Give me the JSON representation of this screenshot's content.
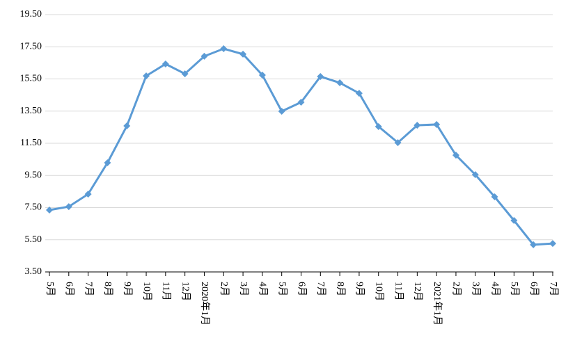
{
  "chart_data": {
    "type": "line",
    "categories": [
      "5月",
      "6月",
      "7月",
      "8月",
      "9月",
      "10月",
      "11月",
      "12月",
      "2020年1月",
      "2月",
      "3月",
      "4月",
      "5月",
      "6月",
      "7月",
      "8月",
      "9月",
      "10月",
      "11月",
      "12月",
      "2021年1月",
      "2月",
      "3月",
      "4月",
      "5月",
      "6月",
      "7月"
    ],
    "series": [
      {
        "color": "#5b9bd5",
        "values": [
          7.35,
          7.56,
          8.34,
          10.29,
          12.58,
          15.69,
          16.43,
          15.82,
          16.91,
          17.38,
          17.04,
          15.74,
          13.49,
          14.05,
          15.65,
          15.26,
          14.61,
          12.54,
          11.54,
          12.62,
          12.67,
          10.76,
          9.55,
          8.17,
          6.7,
          5.19,
          5.27
        ]
      }
    ],
    "ylim": [
      3.5,
      19.5
    ],
    "yticks": [
      {
        "value": 3.5,
        "label": "3.50"
      },
      {
        "value": 5.5,
        "label": "5.50"
      },
      {
        "value": 7.5,
        "label": "7.50"
      },
      {
        "value": 9.5,
        "label": "9.50"
      },
      {
        "value": 11.5,
        "label": "11.50"
      },
      {
        "value": 13.5,
        "label": "13.50"
      },
      {
        "value": 15.5,
        "label": "15.50"
      },
      {
        "value": 17.5,
        "label": "17.50"
      },
      {
        "value": 19.5,
        "label": "19.50"
      }
    ],
    "grid": true
  }
}
